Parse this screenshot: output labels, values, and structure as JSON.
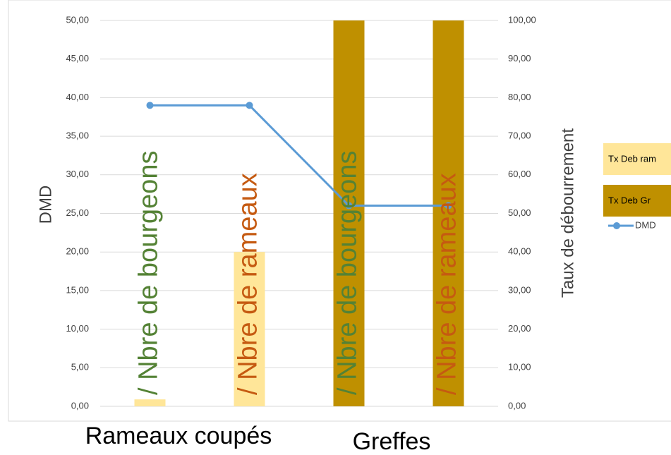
{
  "chart_data": {
    "type": "bar_line",
    "categories": [
      "/ Nbre de bourgeons",
      "/ Nbre de rameaux",
      "/ Nbre de bourgeons",
      "/ Nbre de rameaux"
    ],
    "category_colors": [
      "#548235",
      "#c55a11",
      "#548235",
      "#c55a11"
    ],
    "groups": [
      "Rameaux coupés",
      "Greffes"
    ],
    "ylabel": "DMD",
    "y2label": "Taux de débourrement",
    "ylim": [
      0,
      50
    ],
    "yticks": [
      {
        "value": 0,
        "label": "0,00"
      },
      {
        "value": 5,
        "label": "5,00"
      },
      {
        "value": 10,
        "label": "10,00"
      },
      {
        "value": 15,
        "label": "15,00"
      },
      {
        "value": 20,
        "label": "20,00"
      },
      {
        "value": 25,
        "label": "25,00"
      },
      {
        "value": 30,
        "label": "30,00"
      },
      {
        "value": 35,
        "label": "35,00"
      },
      {
        "value": 40,
        "label": "40,00"
      },
      {
        "value": 45,
        "label": "45,00"
      },
      {
        "value": 50,
        "label": "50,00"
      }
    ],
    "y2lim": [
      0,
      100
    ],
    "y2ticks": [
      {
        "value": 0,
        "label": "0,00"
      },
      {
        "value": 10,
        "label": "10,00"
      },
      {
        "value": 20,
        "label": "20,00"
      },
      {
        "value": 30,
        "label": "30,00"
      },
      {
        "value": 40,
        "label": "40,00"
      },
      {
        "value": 50,
        "label": "50,00"
      },
      {
        "value": 60,
        "label": "60,00"
      },
      {
        "value": 70,
        "label": "70,00"
      },
      {
        "value": 80,
        "label": "80,00"
      },
      {
        "value": 90,
        "label": "90,00"
      },
      {
        "value": 100,
        "label": "100,00"
      }
    ],
    "grid": true,
    "series": [
      {
        "name": "Tx Deb ram",
        "type": "bar",
        "axis": "y2",
        "color": "#ffe699",
        "values": [
          1.8,
          40,
          null,
          null
        ]
      },
      {
        "name": "Tx Deb Gr",
        "type": "bar",
        "axis": "y2",
        "color": "#bf9000",
        "values": [
          null,
          null,
          100,
          100
        ]
      },
      {
        "name": "DMD",
        "type": "line",
        "axis": "y",
        "color": "#5b9bd5",
        "values": [
          39,
          39,
          26,
          26
        ]
      }
    ]
  }
}
